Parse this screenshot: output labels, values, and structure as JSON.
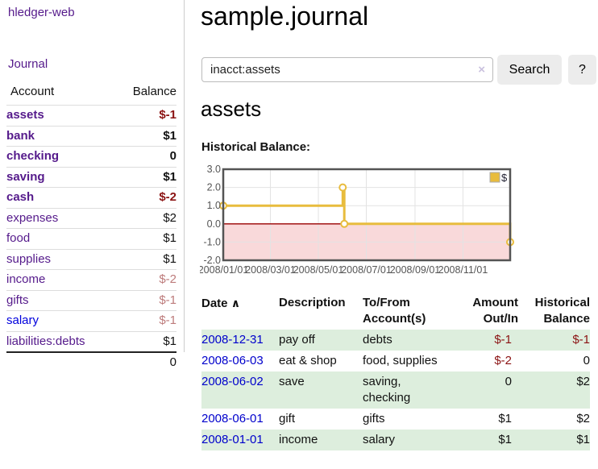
{
  "app": {
    "brand": "hledger-web",
    "nav_journal_label": "Journal"
  },
  "header": {
    "title": "sample.journal"
  },
  "search": {
    "value": "inacct:assets",
    "clear_icon": "×",
    "search_button_label": "Search",
    "help_button_label": "?"
  },
  "sidebar": {
    "headers": {
      "account": "Account",
      "balance": "Balance"
    },
    "accounts": [
      {
        "name": "assets",
        "balance": "$-1",
        "indent": 1,
        "bold": true,
        "link": "purple"
      },
      {
        "name": "bank",
        "balance": "$1",
        "indent": 2,
        "bold": true,
        "link": "purple"
      },
      {
        "name": "checking",
        "balance": "0",
        "indent": 3,
        "bold": true,
        "link": "purple"
      },
      {
        "name": "saving",
        "balance": "$1",
        "indent": 3,
        "bold": true,
        "link": "purple"
      },
      {
        "name": "cash",
        "balance": "$-2",
        "indent": 2,
        "bold": true,
        "link": "purple"
      },
      {
        "name": "expenses",
        "balance": "$2",
        "indent": 1,
        "bold": false,
        "link": "purple"
      },
      {
        "name": "food",
        "balance": "$1",
        "indent": 2,
        "bold": false,
        "link": "purple"
      },
      {
        "name": "supplies",
        "balance": "$1",
        "indent": 2,
        "bold": false,
        "link": "purple"
      },
      {
        "name": "income",
        "balance": "$-2",
        "indent": 1,
        "bold": false,
        "link": "purple"
      },
      {
        "name": "gifts",
        "balance": "$-1",
        "indent": 2,
        "bold": false,
        "link": "purple"
      },
      {
        "name": "salary",
        "balance": "$-1",
        "indent": 2,
        "bold": false,
        "link": "blue"
      },
      {
        "name": "liabilities:debts",
        "balance": "$1",
        "indent": 1,
        "bold": false,
        "link": "purple"
      }
    ],
    "total": "0"
  },
  "account_page": {
    "heading": "assets",
    "chart_label": "Historical Balance:"
  },
  "chart_data": {
    "type": "line",
    "title": "Historical Balance",
    "step": true,
    "series": [
      {
        "name": "$",
        "points": [
          {
            "date": "2008-01-01",
            "value": 1
          },
          {
            "date": "2008-06-01",
            "value": 2
          },
          {
            "date": "2008-06-03",
            "value": 0
          },
          {
            "date": "2008-12-31",
            "value": -1
          }
        ]
      }
    ],
    "x_ticks": [
      "2008/01/01",
      "2008/03/01",
      "2008/05/01",
      "2008/07/01",
      "2008/09/01",
      "2008/11/01"
    ],
    "x_range": [
      "2008-01-01",
      "2008-12-31"
    ],
    "y_ticks": [
      3.0,
      2.0,
      1.0,
      0.0,
      -1.0,
      -2.0
    ],
    "ylim": [
      -2,
      3
    ],
    "grid": true,
    "negative_region_shaded": true,
    "legend": {
      "label": "$",
      "position": "top-right"
    },
    "colors": {
      "line": "#e8bc3d",
      "marker_fill": "#ffffff",
      "negative_fill": "#f9d9da",
      "zero_line": "#990000",
      "grid": "#e3e3e3",
      "border": "#545454",
      "axis_text": "#555555"
    }
  },
  "register": {
    "headers": {
      "date": "Date",
      "sort_arrow": "∧",
      "description": "Description",
      "accounts": "To/From Account(s)",
      "amount": "Amount Out/In",
      "balance": "Historical Balance"
    },
    "rows": [
      {
        "date": "2008-12-31",
        "description": "pay off",
        "accounts": "debts",
        "amount": "$-1",
        "balance": "$-1"
      },
      {
        "date": "2008-06-03",
        "description": "eat & shop",
        "accounts": "food, supplies",
        "amount": "$-2",
        "balance": "0"
      },
      {
        "date": "2008-06-02",
        "description": "save",
        "accounts": "saving, checking",
        "amount": "0",
        "balance": "$2"
      },
      {
        "date": "2008-06-01",
        "description": "gift",
        "accounts": "gifts",
        "amount": "$1",
        "balance": "$2"
      },
      {
        "date": "2008-01-01",
        "description": "income",
        "accounts": "salary",
        "amount": "$1",
        "balance": "$1"
      }
    ]
  },
  "colors": {
    "link_purple": "#551a8b",
    "link_blue": "#0000dd",
    "date_link_blue": "#0000cc",
    "negative_strong": "#8b1313",
    "negative_soft": "#bd7b7b",
    "row_green": "#ddeedd"
  }
}
